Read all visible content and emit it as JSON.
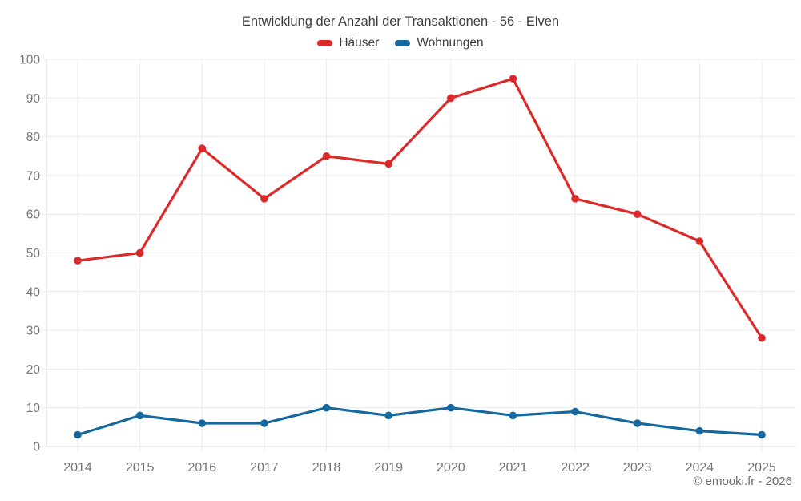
{
  "chart_data": {
    "type": "line",
    "title": "Entwicklung der Anzahl der Transaktionen - 56 - Elven",
    "categories": [
      "2014",
      "2015",
      "2016",
      "2017",
      "2018",
      "2019",
      "2020",
      "2021",
      "2022",
      "2023",
      "2024",
      "2025"
    ],
    "series": [
      {
        "name": "Häuser",
        "color": "#dc2a2a",
        "values": [
          48,
          50,
          77,
          64,
          75,
          73,
          90,
          95,
          64,
          60,
          53,
          28
        ]
      },
      {
        "name": "Wohnungen",
        "color": "#16699e",
        "values": [
          3,
          8,
          6,
          6,
          10,
          8,
          10,
          8,
          9,
          6,
          4,
          3
        ]
      }
    ],
    "xlabel": "",
    "ylabel": "",
    "ylim": [
      0,
      100
    ],
    "ytick_step": 10,
    "grid": true,
    "legend_position": "top",
    "axis_text_color": "#757575",
    "grid_color": "#ececec",
    "axis_line_color": "#d9d9d9",
    "title_color": "#3d3d3d"
  },
  "footer": {
    "copyright": "© emooki.fr - 2026"
  }
}
